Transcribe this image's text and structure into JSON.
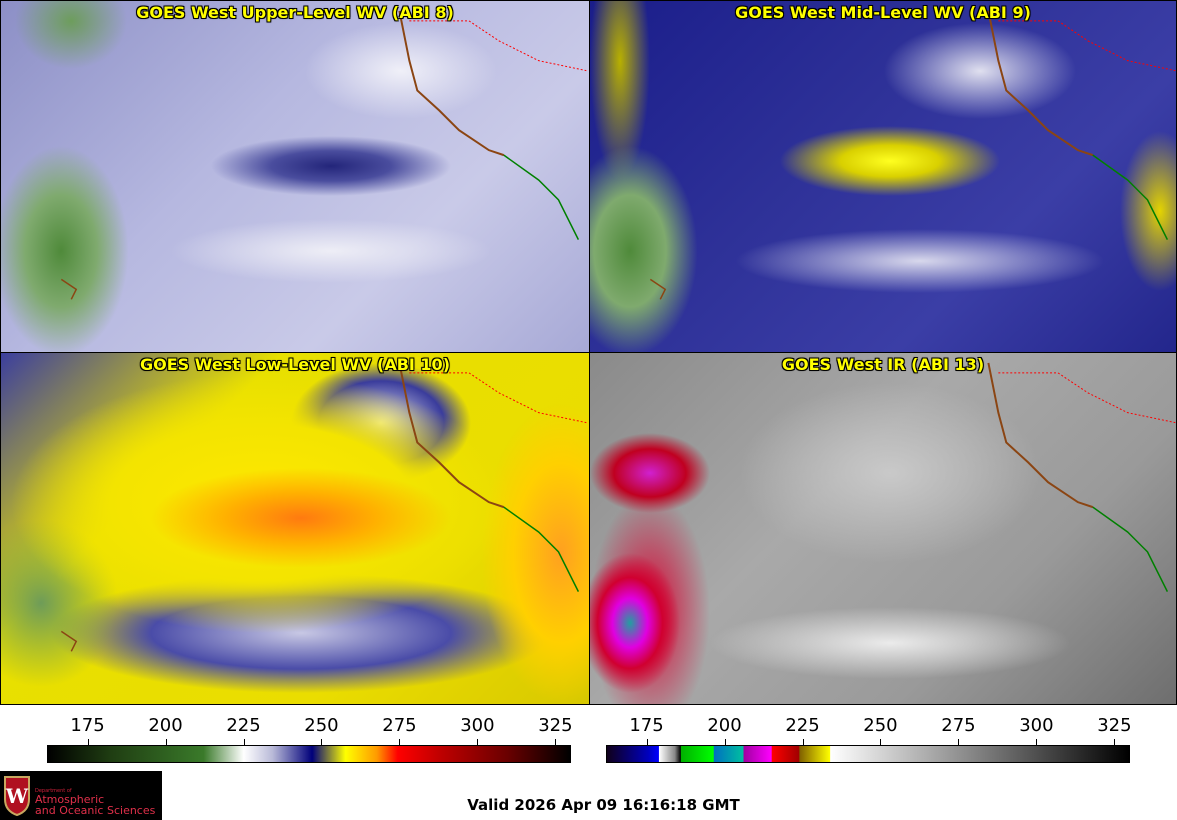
{
  "panels": [
    {
      "title": "GOES West Upper-Level WV (ABI 8)"
    },
    {
      "title": "GOES West Mid-Level WV (ABI 9)"
    },
    {
      "title": "GOES West Low-Level WV (ABI 10)"
    },
    {
      "title": "GOES West IR (ABI 13)"
    }
  ],
  "colorbars": [
    {
      "name": "water-vapor",
      "range": [
        162,
        330
      ],
      "ticks": [
        "175",
        "200",
        "225",
        "250",
        "275",
        "300",
        "325"
      ],
      "tick_values": [
        175,
        200,
        225,
        250,
        275,
        300,
        325
      ]
    },
    {
      "name": "infrared",
      "range": [
        162,
        330
      ],
      "ticks": [
        "175",
        "200",
        "225",
        "250",
        "275",
        "300",
        "325"
      ],
      "tick_values": [
        175,
        200,
        225,
        250,
        275,
        300,
        325
      ]
    }
  ],
  "logo": {
    "line1": "Department of",
    "line2": "Atmospheric",
    "line3": "and Oceanic Sciences"
  },
  "valid_time": "Valid 2026 Apr 09 16:16:18 GMT",
  "colors": {
    "title": "#ffff00",
    "coastline": "#8b4513",
    "borders": "#ff0000",
    "mexico": "#008000"
  }
}
